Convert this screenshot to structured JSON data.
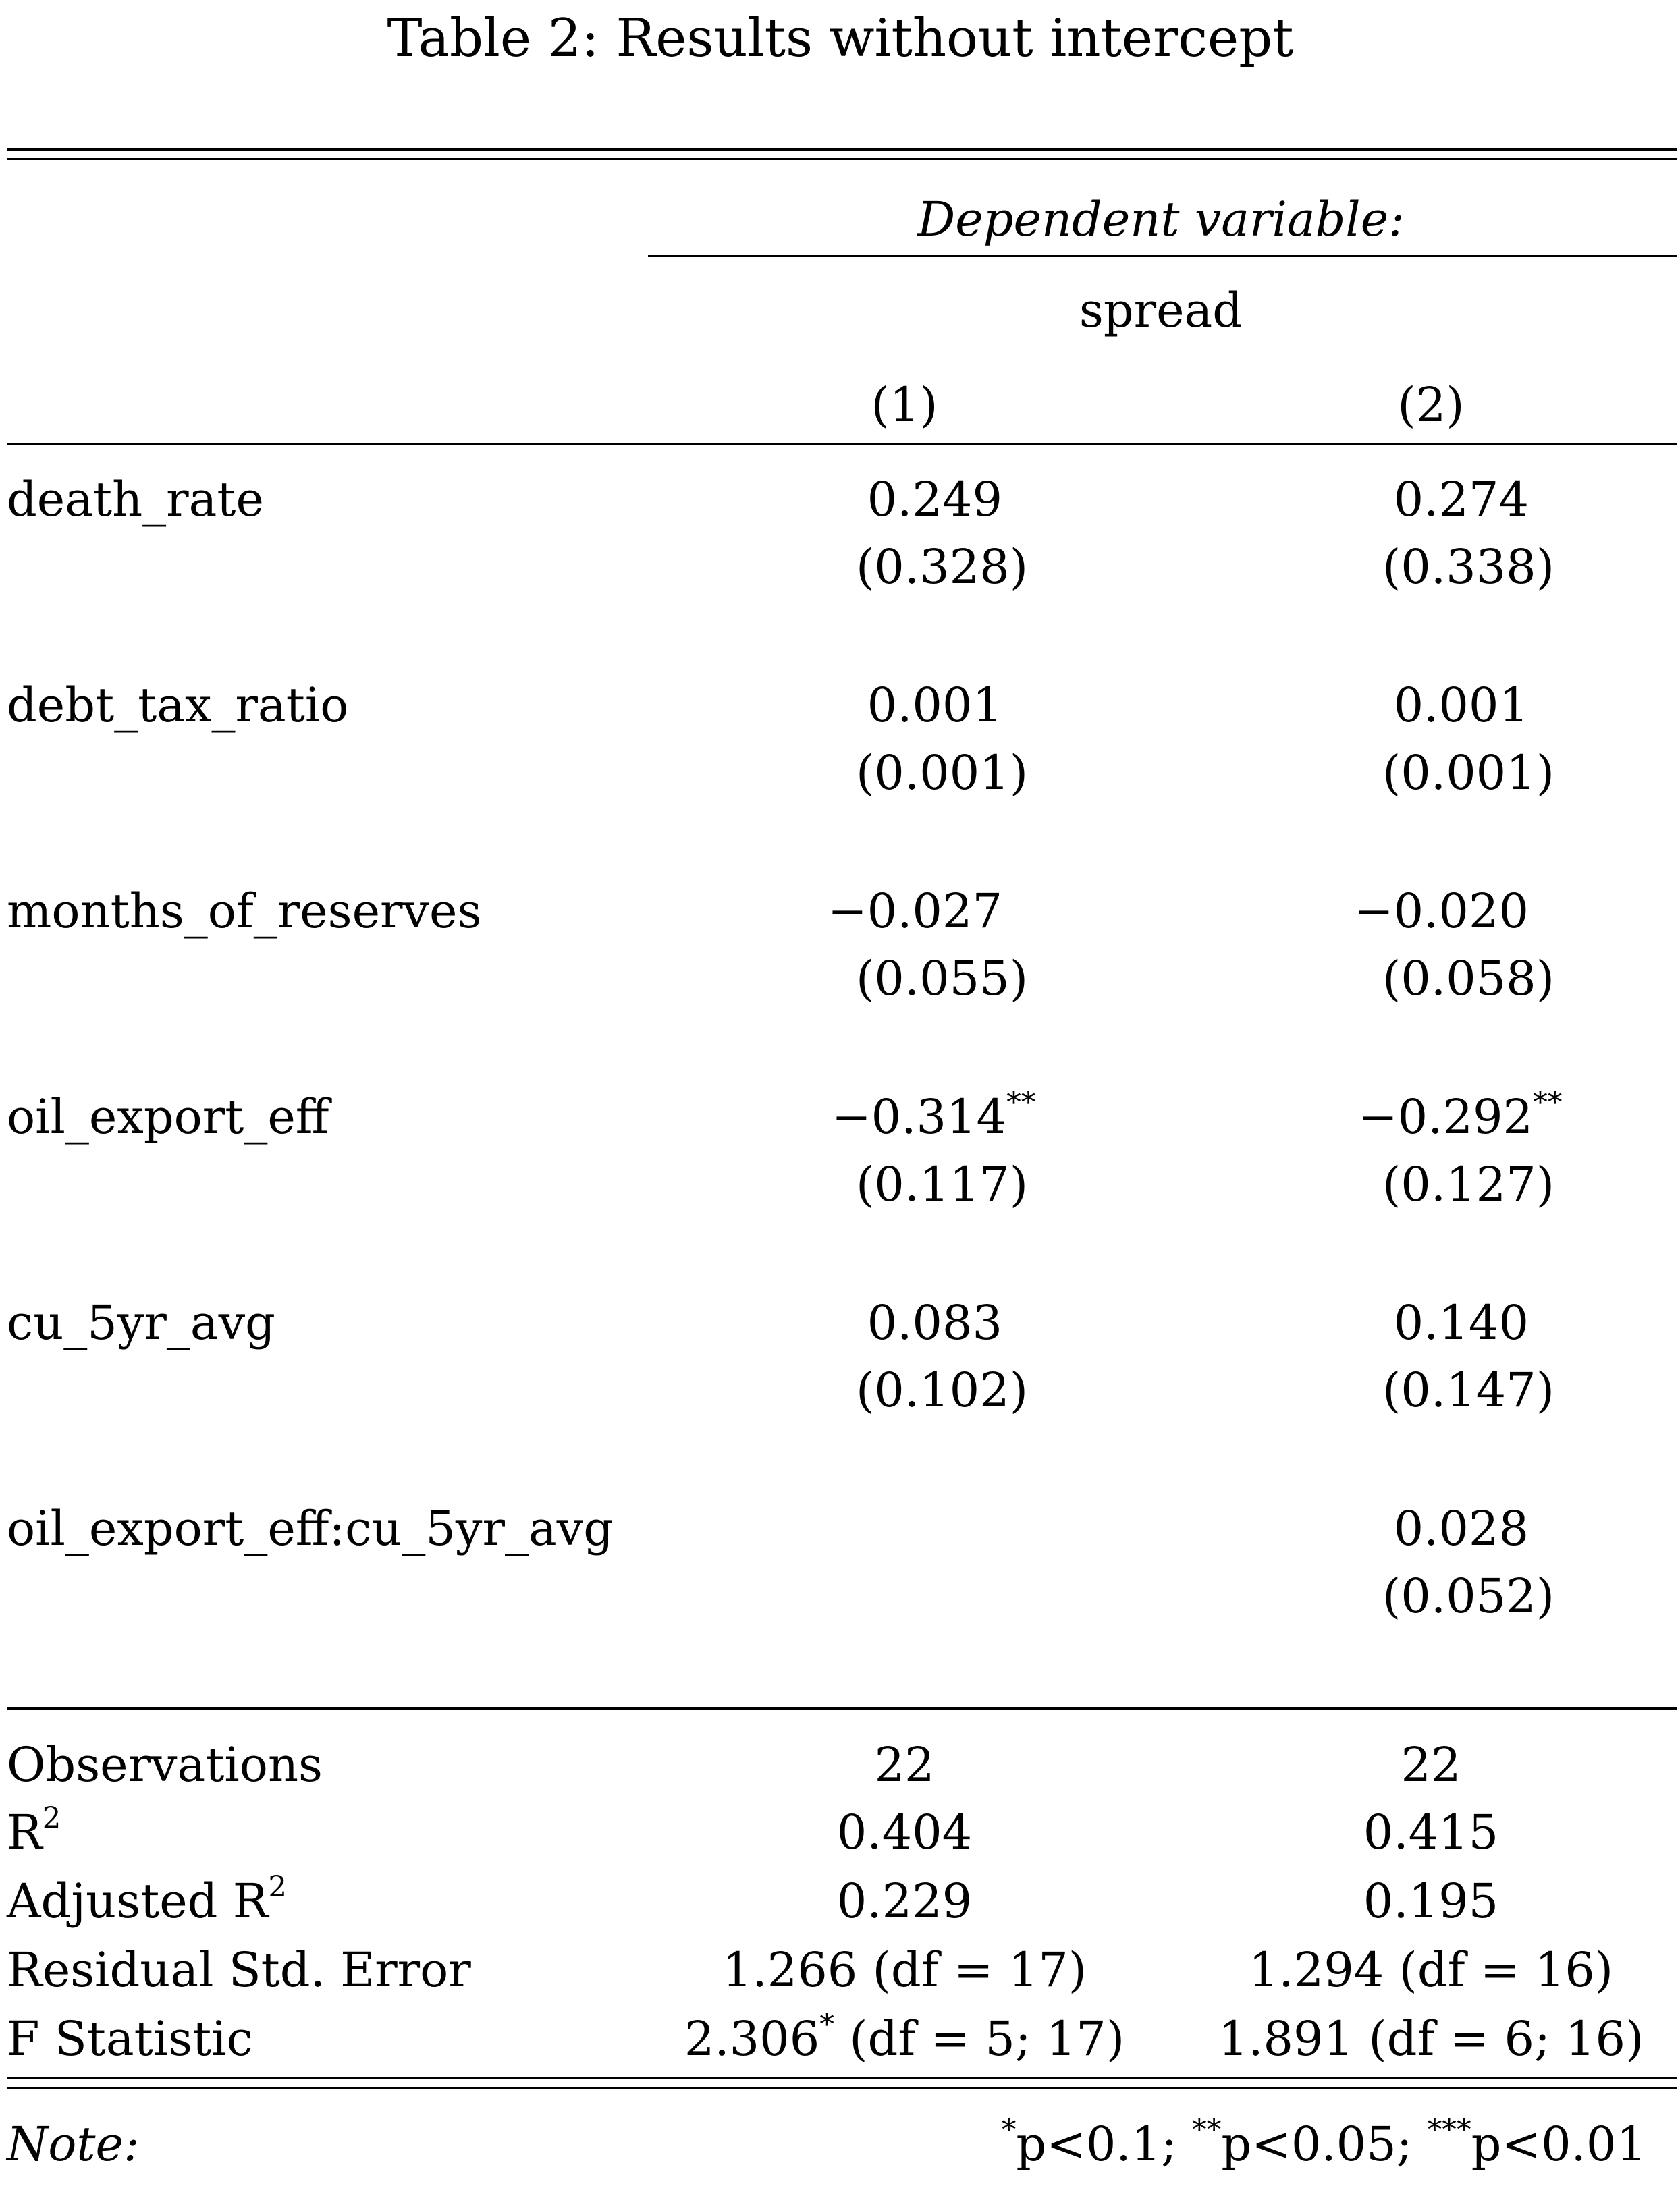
{
  "title": "Table 2: Results without intercept",
  "header": {
    "dependent_variable_label": "Dependent variable:",
    "dependent_variable": "spread",
    "col1": "(1)",
    "col2": "(2)"
  },
  "rows": [
    {
      "name": "death_rate",
      "c1": "0.249",
      "c1_stars": "",
      "c1_se": "(0.328)",
      "c2": "0.274",
      "c2_stars": "",
      "c2_se": "(0.338)"
    },
    {
      "name": "debt_tax_ratio",
      "c1": "0.001",
      "c1_stars": "",
      "c1_se": "(0.001)",
      "c2": "0.001",
      "c2_stars": "",
      "c2_se": "(0.001)"
    },
    {
      "name": "months_of_reserves",
      "c1": "−0.027",
      "c1_stars": "",
      "c1_se": "(0.055)",
      "c2": "−0.020",
      "c2_stars": "",
      "c2_se": "(0.058)"
    },
    {
      "name": "oil_export_eff",
      "c1": "−0.314",
      "c1_stars": "**",
      "c1_se": "(0.117)",
      "c2": "−0.292",
      "c2_stars": "**",
      "c2_se": "(0.127)"
    },
    {
      "name": "cu_5yr_avg",
      "c1": "0.083",
      "c1_stars": "",
      "c1_se": "(0.102)",
      "c2": "0.140",
      "c2_stars": "",
      "c2_se": "(0.147)"
    },
    {
      "name": "oil_export_eff:cu_5yr_avg",
      "c1": "",
      "c1_stars": "",
      "c1_se": "",
      "c2": "0.028",
      "c2_stars": "",
      "c2_se": "(0.052)"
    }
  ],
  "stats": {
    "observations": {
      "label": "Observations",
      "c1": "22",
      "c2": "22"
    },
    "r2": {
      "label": "R",
      "sup": "2",
      "c1": "0.404",
      "c2": "0.415"
    },
    "adj_r2": {
      "label": "Adjusted R",
      "sup": "2",
      "c1": "0.229",
      "c2": "0.195"
    },
    "rse": {
      "label": "Residual Std. Error",
      "c1": "1.266 (df = 17)",
      "c2": "1.294 (df = 16)"
    },
    "fstat": {
      "label": "F Statistic",
      "c1_value": "2.306",
      "c1_stars": "*",
      "c1_df": " (df = 5; 17)",
      "c2": "1.891 (df = 6; 16)"
    }
  },
  "note": {
    "label": "Note:",
    "star1": "*",
    "p1": "p<0.1; ",
    "star2": "**",
    "p2": "p<0.05; ",
    "star3": "***",
    "p3": "p<0.01"
  }
}
